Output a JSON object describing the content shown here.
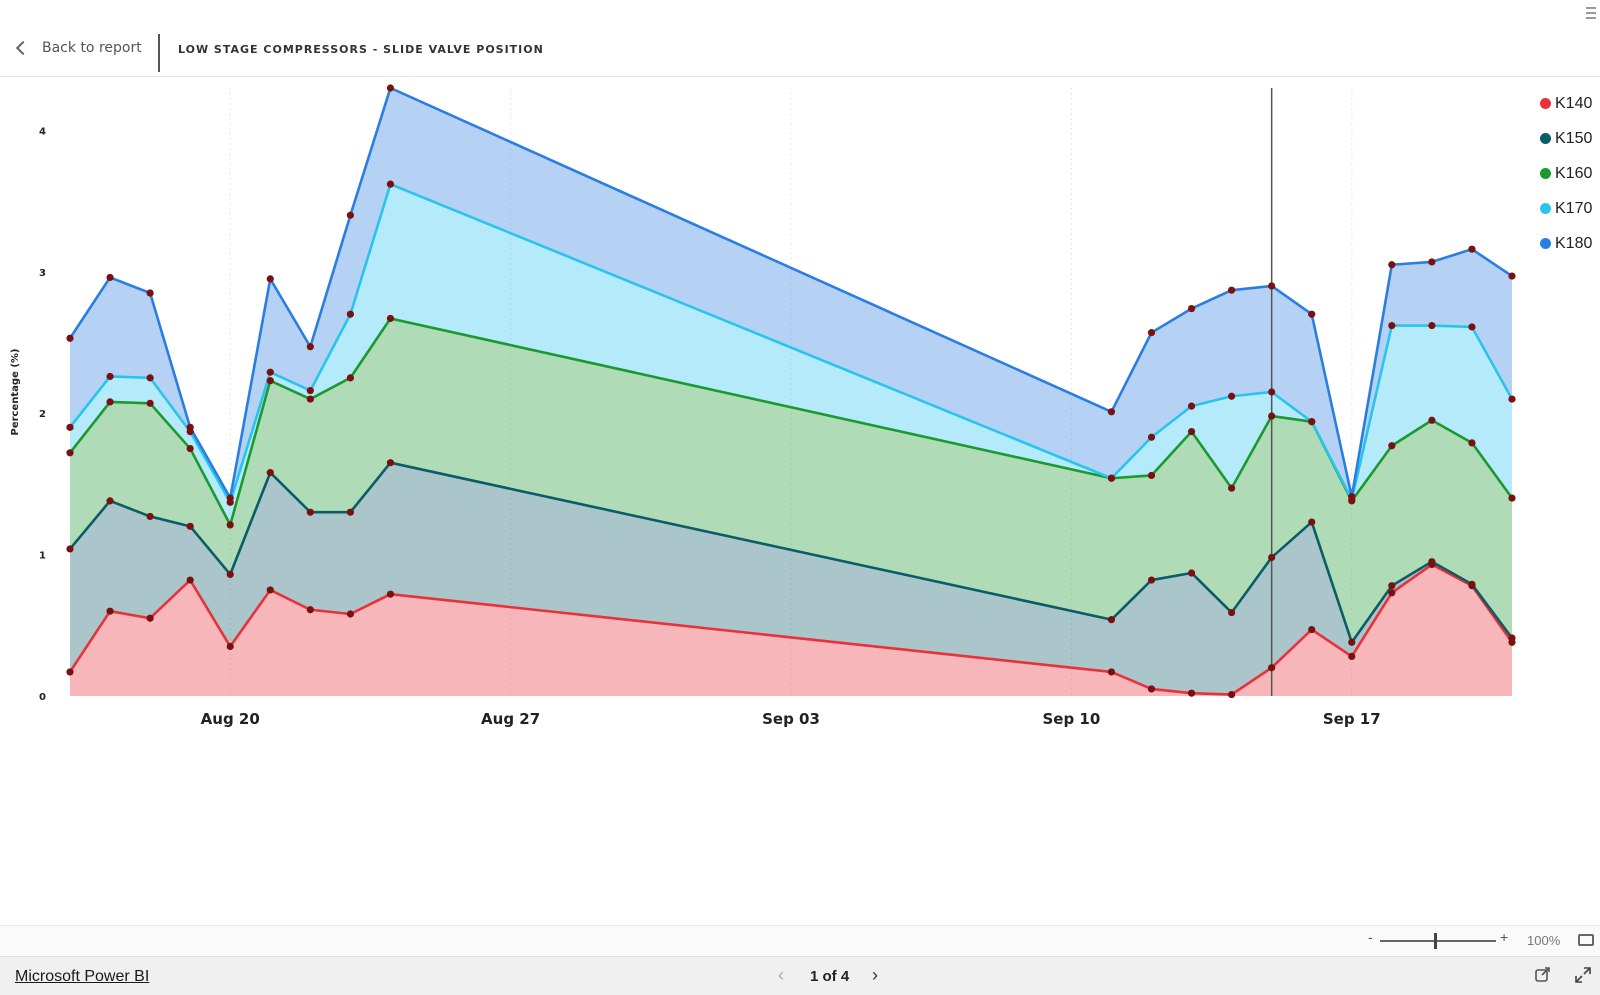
{
  "header": {
    "back_label": "Back to report",
    "title": "LOW STAGE COMPRESSORS - SLIDE VALVE POSITION"
  },
  "colors": {
    "K140": "#e8313a",
    "K150": "#0b5c66",
    "K160": "#1a9a2e",
    "K170": "#29c4ee",
    "K180": "#2a7de1",
    "point_marker": "#7a1010"
  },
  "chart_data": {
    "type": "area",
    "stacked": true,
    "ylabel": "Percentage (%)",
    "xlabel": "",
    "ylim": [
      0,
      4.3
    ],
    "yticks": [
      0,
      1,
      2,
      3,
      4
    ],
    "xtick_labels": [
      "Aug 20",
      "Aug 27",
      "Sep 03",
      "Sep 10",
      "Sep 17"
    ],
    "xtick_dates": [
      "2023-08-20",
      "2023-08-27",
      "2023-09-03",
      "2023-09-10",
      "2023-09-17"
    ],
    "x": [
      "2023-08-16",
      "2023-08-17",
      "2023-08-18",
      "2023-08-19",
      "2023-08-20",
      "2023-08-21",
      "2023-08-22",
      "2023-08-23",
      "2023-08-24",
      "2023-09-11",
      "2023-09-12",
      "2023-09-13",
      "2023-09-14",
      "2023-09-15",
      "2023-09-16",
      "2023-09-17",
      "2023-09-18",
      "2023-09-19",
      "2023-09-20",
      "2023-09-21"
    ],
    "cursor_x": "2023-09-15",
    "grid": true,
    "legend_position": "top-right",
    "series": [
      {
        "name": "K140",
        "values": [
          0.17,
          0.6,
          0.55,
          0.82,
          0.35,
          0.75,
          0.61,
          0.58,
          0.72,
          0.17,
          0.05,
          0.02,
          0.01,
          0.2,
          0.47,
          0.28,
          0.73,
          0.93,
          0.78,
          0.38
        ]
      },
      {
        "name": "K150",
        "values": [
          0.87,
          0.78,
          0.72,
          0.38,
          0.51,
          0.83,
          0.69,
          0.72,
          0.93,
          0.37,
          0.77,
          0.85,
          0.58,
          0.78,
          0.76,
          0.1,
          0.05,
          0.02,
          0.01,
          0.03
        ]
      },
      {
        "name": "K160",
        "values": [
          0.68,
          0.7,
          0.8,
          0.55,
          0.35,
          0.65,
          0.8,
          0.95,
          1.02,
          1.0,
          0.74,
          1.0,
          0.88,
          1.0,
          0.71,
          1.0,
          0.99,
          1.0,
          1.0,
          0.99
        ]
      },
      {
        "name": "K170",
        "values": [
          0.18,
          0.18,
          0.18,
          0.12,
          0.16,
          0.06,
          0.06,
          0.45,
          0.95,
          0.0,
          0.27,
          0.18,
          0.65,
          0.17,
          0.0,
          0.01,
          0.85,
          0.67,
          0.82,
          0.7
        ]
      },
      {
        "name": "K180",
        "values": [
          0.63,
          0.7,
          0.6,
          0.03,
          0.03,
          0.66,
          0.31,
          0.7,
          0.68,
          0.47,
          0.74,
          0.69,
          0.75,
          0.75,
          0.76,
          0.02,
          0.43,
          0.45,
          0.55,
          0.87
        ]
      }
    ]
  },
  "zoom": {
    "minus": "-",
    "plus": "+",
    "level": "100%"
  },
  "footer": {
    "brand": "Microsoft Power BI",
    "page": "1 of 4",
    "prev": "‹",
    "next": "›"
  }
}
